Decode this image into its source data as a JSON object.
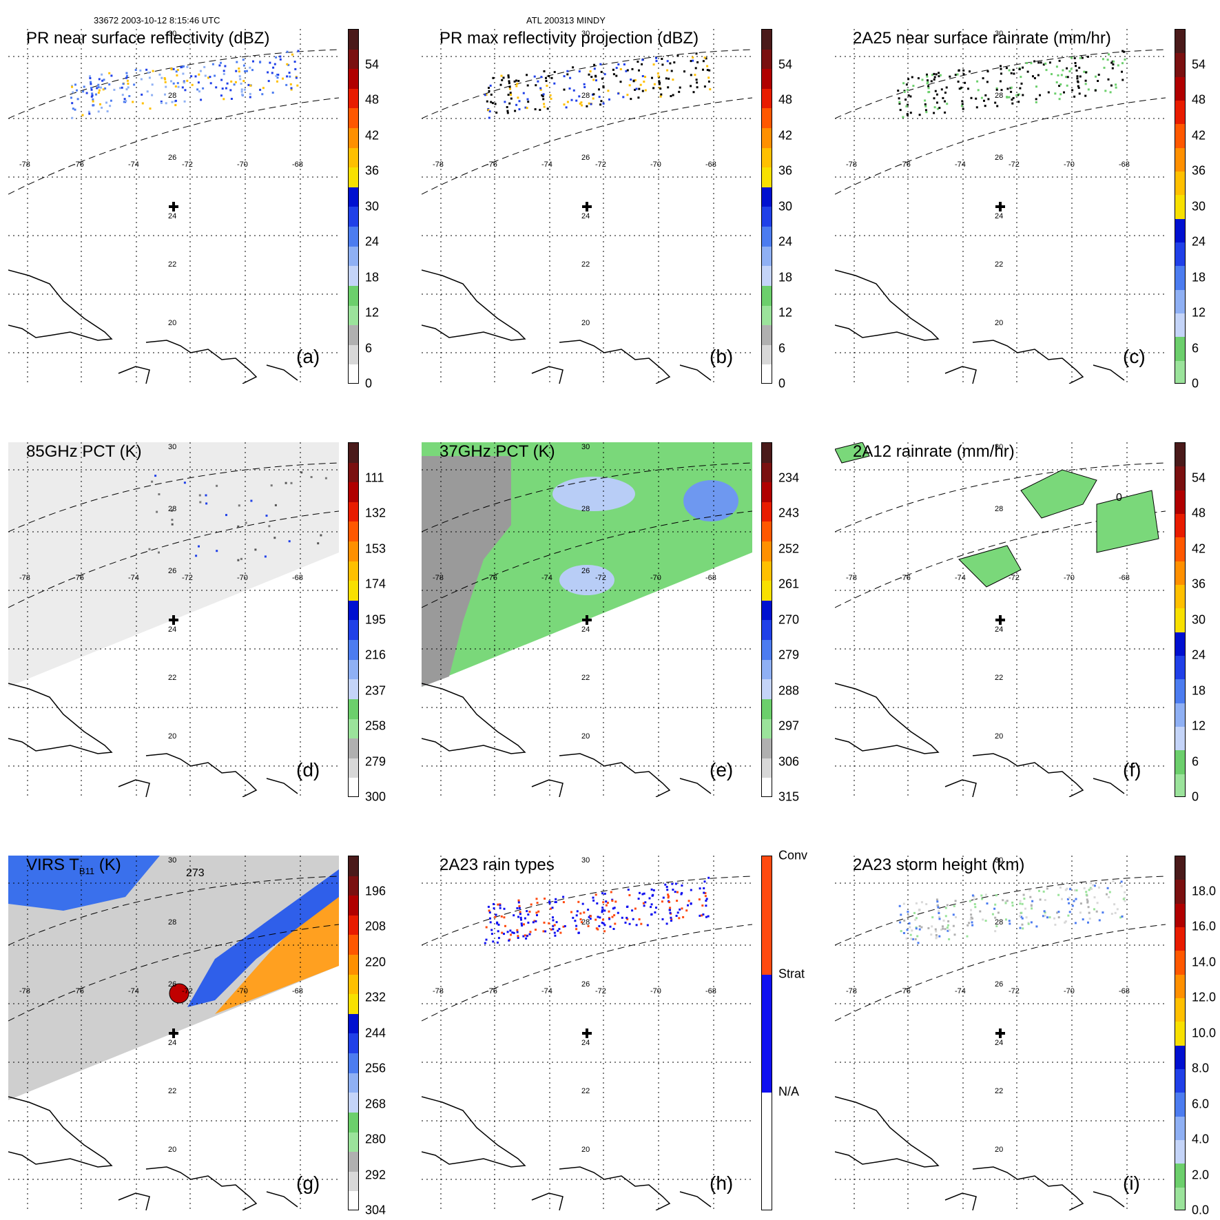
{
  "header": {
    "orbit_time": "33672 2003-10-12 8:15:46 UTC",
    "storm": "ATL 200313 MINDY"
  },
  "grid": {
    "lon_labels": [
      "-78",
      "-76",
      "-74",
      "-72",
      "-70",
      "-68"
    ],
    "lat_labels": [
      "30",
      "28",
      "26",
      "24",
      "22",
      "20"
    ]
  },
  "colors": {
    "seq_dbz": [
      "#ffffff",
      "#d8d8d8",
      "#b0b0b0",
      "#9be39b",
      "#6ccf6c",
      "#c4d4f8",
      "#8fb0f4",
      "#4c7cf0",
      "#2040e8",
      "#0010d0",
      "#f8e000",
      "#ffc000",
      "#ff9000",
      "#ff5800",
      "#e81c00",
      "#b00000",
      "#7a1010",
      "#4a1a1a"
    ],
    "seq_rain": [
      "#9be39b",
      "#6ccf6c",
      "#c4d4f8",
      "#8fb0f4",
      "#4c7cf0",
      "#2040e8",
      "#0010d0",
      "#f8e000",
      "#ffc000",
      "#ff9000",
      "#ff5800",
      "#e81c00",
      "#b00000",
      "#7a1010",
      "#4a1a1a"
    ],
    "rain_type": [
      "#ffffff",
      "#1010f0",
      "#ff4a10"
    ]
  },
  "panels": [
    {
      "id": "a",
      "title": "PR near surface reflectivity (dBZ)",
      "label": "(a)",
      "ticks": [
        "54",
        "48",
        "42",
        "36",
        "30",
        "24",
        "18",
        "12",
        "6",
        "0"
      ]
    },
    {
      "id": "b",
      "title": "PR max reflectivity projection (dBZ)",
      "label": "(b)",
      "ticks": [
        "54",
        "48",
        "42",
        "36",
        "30",
        "24",
        "18",
        "12",
        "6",
        "0"
      ]
    },
    {
      "id": "c",
      "title": "2A25 near surface rainrate (mm/hr)",
      "label": "(c)",
      "ticks": [
        "54",
        "48",
        "42",
        "36",
        "30",
        "24",
        "18",
        "12",
        "6",
        "0"
      ]
    },
    {
      "id": "d",
      "title": "85GHz PCT (K)",
      "label": "(d)",
      "ticks": [
        "111",
        "132",
        "153",
        "174",
        "195",
        "216",
        "237",
        "258",
        "279",
        "300"
      ]
    },
    {
      "id": "e",
      "title": "37GHz PCT (K)",
      "label": "(e)",
      "ticks": [
        "234",
        "243",
        "252",
        "261",
        "270",
        "279",
        "288",
        "297",
        "306",
        "315"
      ]
    },
    {
      "id": "f",
      "title": "2A12 rainrate (mm/hr)",
      "label": "(f)",
      "ticks": [
        "54",
        "48",
        "42",
        "36",
        "30",
        "24",
        "18",
        "12",
        "6",
        "0"
      ],
      "contour_label": "0"
    },
    {
      "id": "g",
      "title": "VIRS T",
      "title_sub": "B11",
      "title_end": " (K)",
      "label": "(g)",
      "ticks": [
        "196",
        "208",
        "220",
        "232",
        "244",
        "256",
        "268",
        "280",
        "292",
        "304"
      ],
      "contour_label": "273"
    },
    {
      "id": "h",
      "title": "2A23 rain types",
      "label": "(h)",
      "ticks": [
        "Conv",
        "Strat",
        "N/A"
      ]
    },
    {
      "id": "i",
      "title": "2A23 storm height (km)",
      "label": "(i)",
      "ticks": [
        "18.0",
        "16.0",
        "14.0",
        "12.0",
        "10.0",
        "8.0",
        "6.0",
        "4.0",
        "2.0",
        "0.0"
      ]
    }
  ]
}
